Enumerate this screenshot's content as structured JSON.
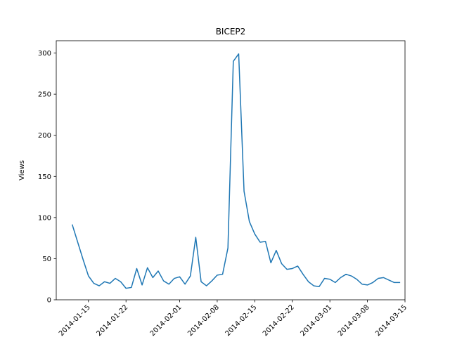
{
  "chart_data": {
    "type": "line",
    "title": "BICEP2",
    "xlabel": "",
    "ylabel": "Views",
    "ylim": [
      0,
      315
    ],
    "xlim": [
      "2014-01-09",
      "2014-03-15"
    ],
    "grid": false,
    "colors": {
      "line": "#1f77b4"
    },
    "yticks": [
      0,
      50,
      100,
      150,
      200,
      250,
      300
    ],
    "xticks": [
      {
        "date": "2014-01-15",
        "label": "2014-01-15"
      },
      {
        "date": "2014-01-22",
        "label": "2014-01-22"
      },
      {
        "date": "2014-02-01",
        "label": "2014-02-01"
      },
      {
        "date": "2014-02-08",
        "label": "2014-02-08"
      },
      {
        "date": "2014-02-15",
        "label": "2014-02-15"
      },
      {
        "date": "2014-02-22",
        "label": "2014-02-22"
      },
      {
        "date": "2014-03-01",
        "label": "2014-03-01"
      },
      {
        "date": "2014-03-08",
        "label": "2014-03-08"
      },
      {
        "date": "2014-03-15",
        "label": "2014-03-15"
      }
    ],
    "series": [
      {
        "x": [
          "2014-01-12",
          "2014-01-13",
          "2014-01-14",
          "2014-01-15",
          "2014-01-16",
          "2014-01-17",
          "2014-01-18",
          "2014-01-19",
          "2014-01-20",
          "2014-01-21",
          "2014-01-22",
          "2014-01-23",
          "2014-01-24",
          "2014-01-25",
          "2014-01-26",
          "2014-01-27",
          "2014-01-28",
          "2014-01-29",
          "2014-01-30",
          "2014-01-31",
          "2014-02-01",
          "2014-02-02",
          "2014-02-03",
          "2014-02-04",
          "2014-02-05",
          "2014-02-06",
          "2014-02-07",
          "2014-02-08",
          "2014-02-09",
          "2014-02-10",
          "2014-02-11",
          "2014-02-12",
          "2014-02-13",
          "2014-02-14",
          "2014-02-15",
          "2014-02-16",
          "2014-02-17",
          "2014-02-18",
          "2014-02-19",
          "2014-02-20",
          "2014-02-21",
          "2014-02-22",
          "2014-02-23",
          "2014-02-24",
          "2014-02-25",
          "2014-02-26",
          "2014-02-27",
          "2014-02-28",
          "2014-03-01",
          "2014-03-02",
          "2014-03-03",
          "2014-03-04",
          "2014-03-05",
          "2014-03-06",
          "2014-03-07",
          "2014-03-08",
          "2014-03-09",
          "2014-03-10",
          "2014-03-11",
          "2014-03-12",
          "2014-03-13",
          "2014-03-14"
        ],
        "y": [
          91,
          70,
          49,
          29,
          20,
          17,
          22,
          20,
          26,
          22,
          14,
          15,
          38,
          18,
          39,
          27,
          35,
          23,
          19,
          26,
          28,
          19,
          29,
          76,
          22,
          17,
          23,
          30,
          31,
          63,
          290,
          299,
          132,
          95,
          80,
          70,
          71,
          45,
          60,
          44,
          37,
          38,
          41,
          31,
          22,
          17,
          16,
          26,
          25,
          21,
          27,
          31,
          29,
          25,
          19,
          18,
          21,
          26,
          27,
          24,
          21,
          21
        ]
      }
    ]
  }
}
